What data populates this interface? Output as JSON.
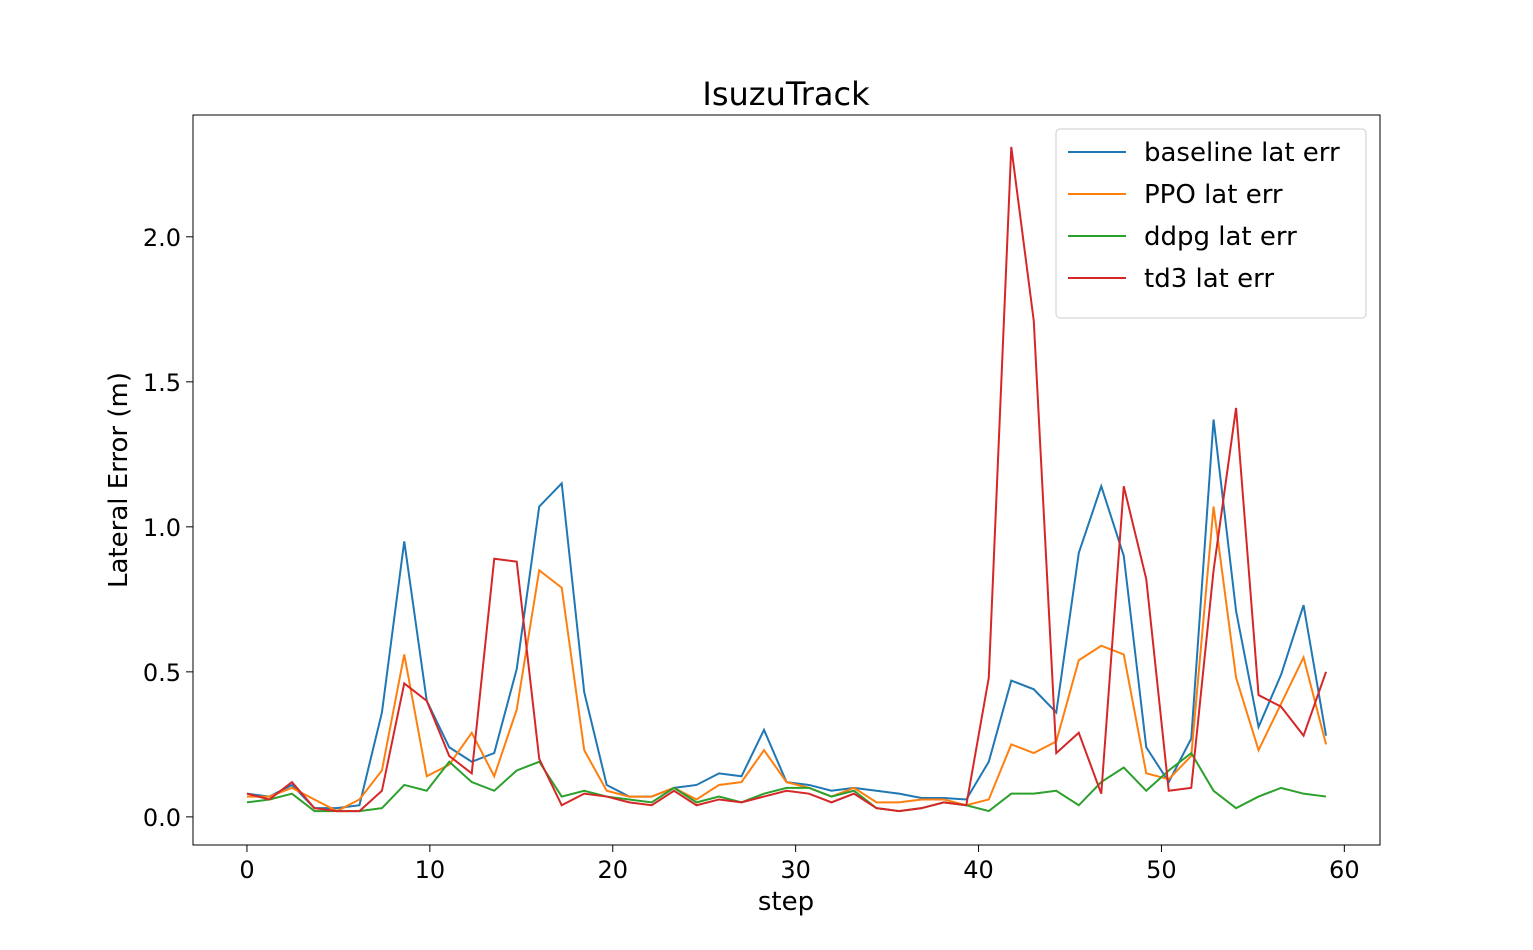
{
  "chart_data": {
    "type": "line",
    "title": "IsuzuTrack",
    "x_label": "step",
    "y_label": "Lateral Error (m)",
    "x": [
      0,
      1.23,
      2.46,
      3.69,
      4.92,
      6.15,
      7.38,
      8.6,
      9.83,
      11.06,
      12.29,
      13.52,
      14.75,
      15.98,
      17.21,
      18.44,
      19.67,
      20.9,
      22.13,
      23.35,
      24.58,
      25.81,
      27.04,
      28.27,
      29.5,
      30.73,
      31.96,
      33.19,
      34.42,
      35.65,
      36.88,
      38.1,
      39.33,
      40.56,
      41.79,
      43.02,
      44.25,
      45.48,
      46.71,
      47.94,
      49.17,
      50.4,
      51.63,
      52.85,
      54.08,
      55.31,
      56.54,
      57.77,
      59
    ],
    "series": [
      {
        "name": "baseline lat err",
        "color": "#1f77b4",
        "values": [
          0.08,
          0.07,
          0.11,
          0.03,
          0.03,
          0.04,
          0.36,
          0.95,
          0.4,
          0.24,
          0.19,
          0.22,
          0.51,
          1.07,
          1.15,
          0.43,
          0.11,
          0.07,
          0.07,
          0.1,
          0.11,
          0.15,
          0.14,
          0.3,
          0.12,
          0.11,
          0.09,
          0.1,
          0.09,
          0.08,
          0.065,
          0.065,
          0.06,
          0.19,
          0.47,
          0.44,
          0.36,
          0.91,
          1.14,
          0.9,
          0.24,
          0.12,
          0.27,
          1.37,
          0.71,
          0.31,
          0.49,
          0.73,
          0.28
        ]
      },
      {
        "name": "PPO lat err",
        "color": "#ff7f0e",
        "values": [
          0.07,
          0.07,
          0.1,
          0.06,
          0.02,
          0.06,
          0.16,
          0.56,
          0.14,
          0.18,
          0.29,
          0.14,
          0.37,
          0.85,
          0.79,
          0.23,
          0.09,
          0.07,
          0.07,
          0.1,
          0.06,
          0.11,
          0.12,
          0.23,
          0.12,
          0.1,
          0.07,
          0.1,
          0.05,
          0.05,
          0.06,
          0.06,
          0.04,
          0.06,
          0.25,
          0.22,
          0.26,
          0.54,
          0.59,
          0.56,
          0.15,
          0.13,
          0.21,
          1.07,
          0.48,
          0.23,
          0.39,
          0.55,
          0.25
        ]
      },
      {
        "name": "ddpg lat err",
        "color": "#2ca02c",
        "values": [
          0.05,
          0.06,
          0.08,
          0.02,
          0.02,
          0.02,
          0.03,
          0.11,
          0.09,
          0.19,
          0.12,
          0.09,
          0.16,
          0.19,
          0.07,
          0.09,
          0.07,
          0.06,
          0.05,
          0.1,
          0.05,
          0.07,
          0.05,
          0.08,
          0.1,
          0.1,
          0.07,
          0.09,
          0.03,
          0.02,
          0.03,
          0.05,
          0.04,
          0.02,
          0.08,
          0.08,
          0.09,
          0.04,
          0.12,
          0.17,
          0.09,
          0.16,
          0.22,
          0.09,
          0.03,
          0.07,
          0.1,
          0.08,
          0.07
        ]
      },
      {
        "name": "td3 lat err",
        "color": "#d62728",
        "values": [
          0.08,
          0.06,
          0.12,
          0.03,
          0.02,
          0.02,
          0.09,
          0.46,
          0.4,
          0.21,
          0.15,
          0.89,
          0.88,
          0.2,
          0.04,
          0.08,
          0.07,
          0.05,
          0.04,
          0.09,
          0.04,
          0.06,
          0.05,
          0.07,
          0.09,
          0.08,
          0.05,
          0.08,
          0.03,
          0.02,
          0.03,
          0.05,
          0.04,
          0.48,
          2.31,
          1.71,
          0.22,
          0.29,
          0.08,
          1.14,
          0.82,
          0.09,
          0.1,
          0.85,
          1.41,
          0.42,
          0.38,
          0.28,
          0.5
        ]
      }
    ],
    "xlim": [
      -2.95,
      61.95
    ],
    "ylim": [
      -0.097,
      2.42
    ],
    "xticks": [
      0,
      10,
      20,
      30,
      40,
      50,
      60
    ],
    "yticks": [
      {
        "value": 0,
        "label": "0.0"
      },
      {
        "value": 0.5,
        "label": "0.5"
      },
      {
        "value": 1,
        "label": "1.0"
      },
      {
        "value": 1.5,
        "label": "1.5"
      },
      {
        "value": 2,
        "label": "2.0"
      }
    ],
    "legend": "upper right"
  }
}
